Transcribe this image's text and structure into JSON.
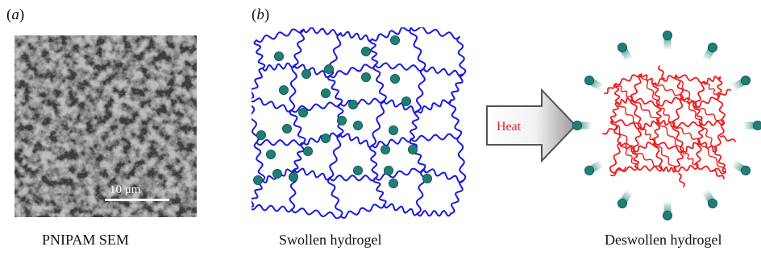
{
  "panel_a": {
    "label_open": "(",
    "label_letter": "a",
    "label_close": ")",
    "scale_bar_text": "10 μm",
    "caption": "PNIPAM SEM"
  },
  "panel_b": {
    "label_open": "(",
    "label_letter": "b",
    "label_close": ")",
    "swollen_caption": "Swollen hydrogel",
    "arrow_text": "Heat",
    "deswollen_caption": "Deswollen hydrogel"
  },
  "colors": {
    "swollen_chains": "#1a1adc",
    "deswollen_chains": "#ee1c1c",
    "water_particle": "#1f7f74",
    "heat_text": "#e41e1e"
  }
}
